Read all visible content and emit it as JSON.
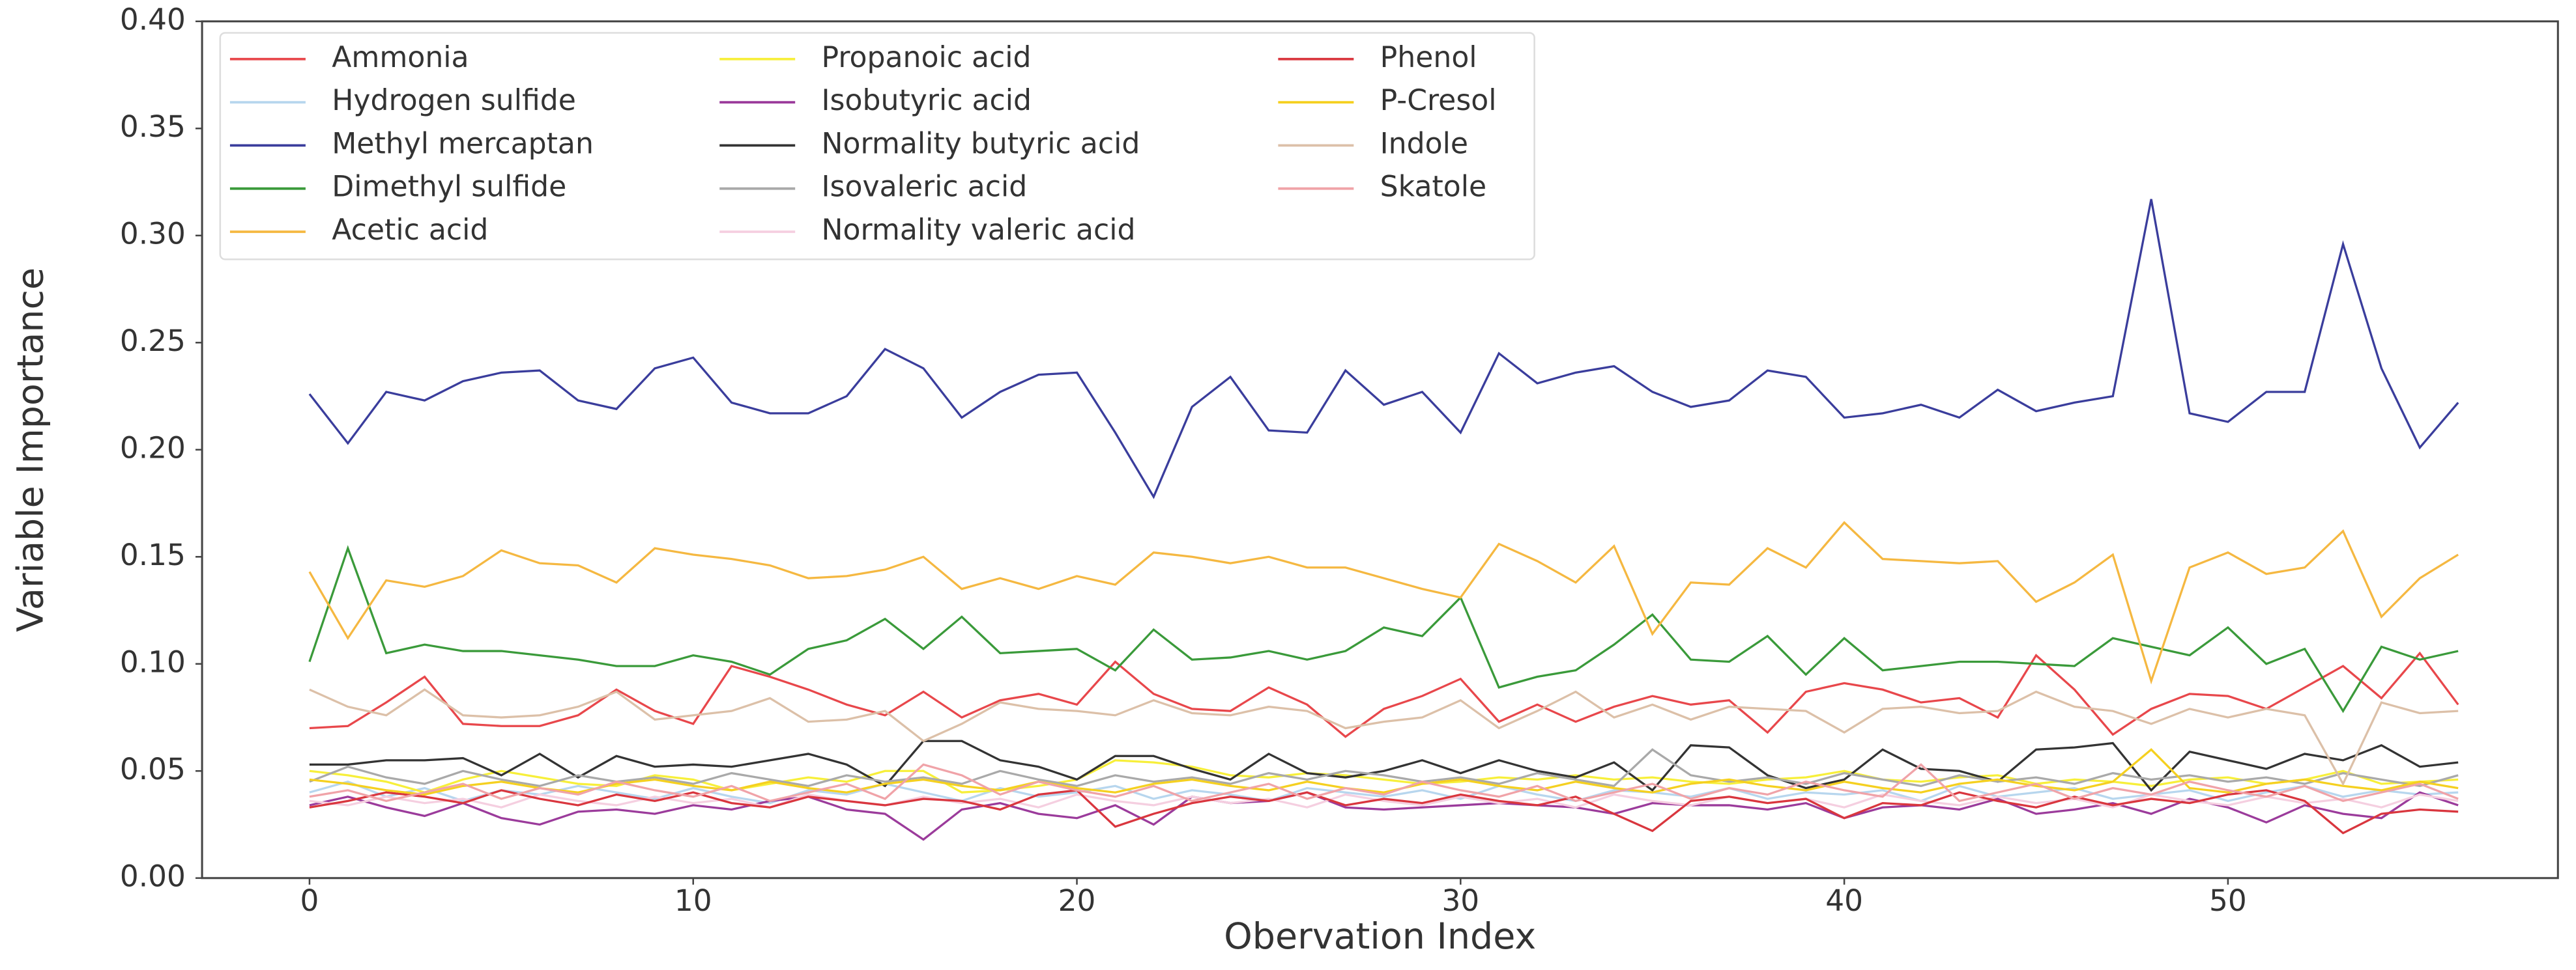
{
  "chart_data": {
    "type": "line",
    "xlabel": "Obervation Index",
    "ylabel": "Variable Importance",
    "x": [
      0,
      1,
      2,
      3,
      4,
      5,
      6,
      7,
      8,
      9,
      10,
      11,
      12,
      13,
      14,
      15,
      16,
      17,
      18,
      19,
      20,
      21,
      22,
      23,
      24,
      25,
      26,
      27,
      28,
      29,
      30,
      31,
      32,
      33,
      34,
      35,
      36,
      37,
      38,
      39,
      40,
      41,
      42,
      43,
      44,
      45,
      46,
      47,
      48,
      49,
      50,
      51,
      52,
      53,
      54,
      55,
      56
    ],
    "xlim": [
      -2.8,
      58.6
    ],
    "xticks": [
      0,
      10,
      20,
      30,
      40,
      50
    ],
    "ylim": [
      0,
      0.4
    ],
    "yticks": [
      {
        "value": 0,
        "label": "0.00"
      },
      {
        "value": 0.05,
        "label": "0.05"
      },
      {
        "value": 0.1,
        "label": "0.10"
      },
      {
        "value": 0.15,
        "label": "0.15"
      },
      {
        "value": 0.2,
        "label": "0.20"
      },
      {
        "value": 0.25,
        "label": "0.25"
      },
      {
        "value": 0.3,
        "label": "0.30"
      },
      {
        "value": 0.35,
        "label": "0.35"
      },
      {
        "value": 0.4,
        "label": "0.40"
      }
    ],
    "grid": false,
    "legend": "upper left",
    "series": [
      {
        "name": "Ammonia",
        "color": "#e8474b",
        "values": [
          0.07,
          0.071,
          0.082,
          0.094,
          0.072,
          0.071,
          0.071,
          0.076,
          0.088,
          0.078,
          0.072,
          0.099,
          0.094,
          0.088,
          0.081,
          0.076,
          0.087,
          0.075,
          0.083,
          0.086,
          0.081,
          0.101,
          0.086,
          0.079,
          0.078,
          0.089,
          0.081,
          0.066,
          0.079,
          0.085,
          0.093,
          0.073,
          0.081,
          0.073,
          0.08,
          0.085,
          0.081,
          0.083,
          0.068,
          0.087,
          0.091,
          0.088,
          0.082,
          0.084,
          0.075,
          0.104,
          0.088,
          0.067,
          0.079,
          0.086,
          0.085,
          0.079,
          0.089,
          0.099,
          0.084,
          0.105,
          0.081
        ]
      },
      {
        "name": "Hydrogen sulfide",
        "color": "#b7d6ee",
        "values": [
          0.04,
          0.045,
          0.038,
          0.042,
          0.036,
          0.041,
          0.039,
          0.043,
          0.04,
          0.037,
          0.042,
          0.038,
          0.035,
          0.041,
          0.039,
          0.044,
          0.04,
          0.036,
          0.042,
          0.038,
          0.04,
          0.043,
          0.037,
          0.041,
          0.039,
          0.036,
          0.042,
          0.04,
          0.038,
          0.041,
          0.037,
          0.043,
          0.039,
          0.036,
          0.041,
          0.04,
          0.038,
          0.042,
          0.037,
          0.04,
          0.039,
          0.041,
          0.036,
          0.043,
          0.038,
          0.04,
          0.042,
          0.037,
          0.039,
          0.041,
          0.036,
          0.04,
          0.043,
          0.038,
          0.041,
          0.039,
          0.04
        ]
      },
      {
        "name": "Methyl mercaptan",
        "color": "#3a3d9c",
        "values": [
          0.226,
          0.203,
          0.227,
          0.223,
          0.232,
          0.236,
          0.237,
          0.223,
          0.219,
          0.238,
          0.243,
          0.222,
          0.217,
          0.217,
          0.225,
          0.247,
          0.238,
          0.215,
          0.227,
          0.235,
          0.236,
          0.208,
          0.178,
          0.22,
          0.234,
          0.209,
          0.208,
          0.237,
          0.221,
          0.227,
          0.208,
          0.245,
          0.231,
          0.236,
          0.239,
          0.227,
          0.22,
          0.223,
          0.237,
          0.234,
          0.215,
          0.217,
          0.221,
          0.215,
          0.228,
          0.218,
          0.222,
          0.225,
          0.317,
          0.217,
          0.213,
          0.227,
          0.227,
          0.296,
          0.238,
          0.201,
          0.222
        ]
      },
      {
        "name": "Dimethyl sulfide",
        "color": "#3a9a3a",
        "values": [
          0.101,
          0.154,
          0.105,
          0.109,
          0.106,
          0.106,
          0.104,
          0.102,
          0.099,
          0.099,
          0.104,
          0.101,
          0.095,
          0.107,
          0.111,
          0.121,
          0.107,
          0.122,
          0.105,
          0.106,
          0.107,
          0.097,
          0.116,
          0.102,
          0.103,
          0.106,
          0.102,
          0.106,
          0.117,
          0.113,
          0.131,
          0.089,
          0.094,
          0.097,
          0.109,
          0.123,
          0.102,
          0.101,
          0.113,
          0.095,
          0.112,
          0.097,
          0.099,
          0.101,
          0.101,
          0.1,
          0.099,
          0.112,
          0.108,
          0.104,
          0.117,
          0.1,
          0.107,
          0.078,
          0.108,
          0.102,
          0.106
        ]
      },
      {
        "name": "Acetic acid",
        "color": "#f5b841",
        "values": [
          0.143,
          0.112,
          0.139,
          0.136,
          0.141,
          0.153,
          0.147,
          0.146,
          0.138,
          0.154,
          0.151,
          0.149,
          0.146,
          0.14,
          0.141,
          0.144,
          0.15,
          0.135,
          0.14,
          0.135,
          0.141,
          0.137,
          0.152,
          0.15,
          0.147,
          0.15,
          0.145,
          0.145,
          0.14,
          0.135,
          0.131,
          0.156,
          0.148,
          0.138,
          0.155,
          0.114,
          0.138,
          0.137,
          0.154,
          0.145,
          0.166,
          0.149,
          0.148,
          0.147,
          0.148,
          0.129,
          0.138,
          0.151,
          0.092,
          0.145,
          0.152,
          0.142,
          0.145,
          0.162,
          0.122,
          0.14,
          0.151
        ]
      },
      {
        "name": "Propanoic acid",
        "color": "#f7ef3a",
        "values": [
          0.05,
          0.048,
          0.045,
          0.04,
          0.046,
          0.05,
          0.047,
          0.044,
          0.043,
          0.048,
          0.046,
          0.041,
          0.044,
          0.047,
          0.045,
          0.05,
          0.05,
          0.04,
          0.041,
          0.043,
          0.046,
          0.055,
          0.054,
          0.052,
          0.048,
          0.047,
          0.049,
          0.048,
          0.046,
          0.044,
          0.045,
          0.047,
          0.046,
          0.048,
          0.046,
          0.047,
          0.045,
          0.044,
          0.046,
          0.047,
          0.05,
          0.046,
          0.045,
          0.047,
          0.048,
          0.044,
          0.046,
          0.045,
          0.043,
          0.046,
          0.047,
          0.044,
          0.046,
          0.05,
          0.044,
          0.045,
          0.046
        ]
      },
      {
        "name": "Isobutyric acid",
        "color": "#9b3b9b",
        "values": [
          0.034,
          0.038,
          0.033,
          0.029,
          0.035,
          0.028,
          0.025,
          0.031,
          0.032,
          0.03,
          0.034,
          0.032,
          0.036,
          0.038,
          0.032,
          0.03,
          0.018,
          0.032,
          0.035,
          0.03,
          0.028,
          0.034,
          0.025,
          0.038,
          0.035,
          0.036,
          0.04,
          0.033,
          0.032,
          0.033,
          0.034,
          0.035,
          0.034,
          0.033,
          0.03,
          0.035,
          0.034,
          0.034,
          0.032,
          0.035,
          0.028,
          0.033,
          0.034,
          0.032,
          0.037,
          0.03,
          0.032,
          0.035,
          0.03,
          0.037,
          0.033,
          0.026,
          0.034,
          0.03,
          0.028,
          0.04,
          0.034
        ]
      },
      {
        "name": "Normality butyric acid",
        "color": "#333333",
        "values": [
          0.053,
          0.053,
          0.055,
          0.055,
          0.056,
          0.048,
          0.058,
          0.047,
          0.057,
          0.052,
          0.053,
          0.052,
          0.055,
          0.058,
          0.053,
          0.043,
          0.064,
          0.064,
          0.055,
          0.052,
          0.046,
          0.057,
          0.057,
          0.051,
          0.046,
          0.058,
          0.049,
          0.047,
          0.05,
          0.055,
          0.049,
          0.055,
          0.05,
          0.047,
          0.054,
          0.041,
          0.062,
          0.061,
          0.048,
          0.042,
          0.046,
          0.06,
          0.051,
          0.05,
          0.045,
          0.06,
          0.061,
          0.063,
          0.041,
          0.059,
          0.055,
          0.051,
          0.058,
          0.055,
          0.062,
          0.052,
          0.054
        ]
      },
      {
        "name": "Isovaleric acid",
        "color": "#a9a9a9",
        "values": [
          0.045,
          0.052,
          0.047,
          0.044,
          0.05,
          0.046,
          0.043,
          0.048,
          0.045,
          0.047,
          0.044,
          0.049,
          0.046,
          0.043,
          0.048,
          0.045,
          0.047,
          0.044,
          0.05,
          0.046,
          0.043,
          0.048,
          0.045,
          0.047,
          0.044,
          0.049,
          0.046,
          0.05,
          0.048,
          0.045,
          0.047,
          0.044,
          0.049,
          0.046,
          0.043,
          0.06,
          0.048,
          0.045,
          0.047,
          0.044,
          0.049,
          0.046,
          0.043,
          0.048,
          0.045,
          0.047,
          0.044,
          0.049,
          0.046,
          0.048,
          0.045,
          0.047,
          0.044,
          0.049,
          0.046,
          0.043,
          0.048
        ]
      },
      {
        "name": "Normality valeric acid",
        "color": "#f5cfe0",
        "values": [
          0.036,
          0.034,
          0.038,
          0.035,
          0.037,
          0.033,
          0.039,
          0.036,
          0.034,
          0.038,
          0.035,
          0.037,
          0.033,
          0.039,
          0.036,
          0.034,
          0.038,
          0.035,
          0.037,
          0.033,
          0.039,
          0.036,
          0.034,
          0.038,
          0.035,
          0.037,
          0.033,
          0.039,
          0.036,
          0.034,
          0.038,
          0.035,
          0.037,
          0.033,
          0.039,
          0.036,
          0.034,
          0.038,
          0.035,
          0.037,
          0.033,
          0.039,
          0.036,
          0.034,
          0.038,
          0.035,
          0.037,
          0.033,
          0.039,
          0.036,
          0.034,
          0.038,
          0.035,
          0.037,
          0.033,
          0.039,
          0.036
        ]
      },
      {
        "name": "Phenol",
        "color": "#d9363e",
        "values": [
          0.033,
          0.036,
          0.04,
          0.038,
          0.035,
          0.041,
          0.037,
          0.034,
          0.039,
          0.036,
          0.04,
          0.035,
          0.033,
          0.038,
          0.036,
          0.034,
          0.037,
          0.036,
          0.032,
          0.039,
          0.041,
          0.024,
          0.03,
          0.035,
          0.038,
          0.036,
          0.04,
          0.034,
          0.037,
          0.035,
          0.039,
          0.036,
          0.034,
          0.038,
          0.03,
          0.022,
          0.036,
          0.038,
          0.035,
          0.037,
          0.028,
          0.035,
          0.034,
          0.04,
          0.036,
          0.033,
          0.038,
          0.034,
          0.037,
          0.035,
          0.039,
          0.041,
          0.036,
          0.021,
          0.03,
          0.032,
          0.031
        ]
      },
      {
        "name": "P-Cresol",
        "color": "#f5d020",
        "values": [
          0.046,
          0.044,
          0.041,
          0.039,
          0.043,
          0.045,
          0.042,
          0.04,
          0.044,
          0.046,
          0.043,
          0.041,
          0.045,
          0.042,
          0.04,
          0.044,
          0.046,
          0.043,
          0.041,
          0.045,
          0.042,
          0.04,
          0.044,
          0.046,
          0.043,
          0.041,
          0.045,
          0.042,
          0.04,
          0.044,
          0.046,
          0.043,
          0.041,
          0.045,
          0.042,
          0.04,
          0.044,
          0.046,
          0.043,
          0.041,
          0.045,
          0.042,
          0.04,
          0.044,
          0.046,
          0.043,
          0.041,
          0.045,
          0.06,
          0.042,
          0.04,
          0.044,
          0.046,
          0.043,
          0.041,
          0.045,
          0.042
        ]
      },
      {
        "name": "Indole",
        "color": "#dcc0a8",
        "values": [
          0.088,
          0.08,
          0.076,
          0.088,
          0.076,
          0.075,
          0.076,
          0.08,
          0.087,
          0.074,
          0.076,
          0.078,
          0.084,
          0.073,
          0.074,
          0.078,
          0.064,
          0.072,
          0.082,
          0.079,
          0.078,
          0.076,
          0.083,
          0.077,
          0.076,
          0.08,
          0.078,
          0.07,
          0.073,
          0.075,
          0.083,
          0.07,
          0.078,
          0.087,
          0.075,
          0.081,
          0.074,
          0.08,
          0.079,
          0.078,
          0.068,
          0.079,
          0.08,
          0.077,
          0.078,
          0.087,
          0.08,
          0.078,
          0.072,
          0.079,
          0.075,
          0.079,
          0.076,
          0.044,
          0.082,
          0.077,
          0.078
        ]
      },
      {
        "name": "Skatole",
        "color": "#f0a3a8",
        "values": [
          0.038,
          0.041,
          0.036,
          0.04,
          0.044,
          0.037,
          0.042,
          0.039,
          0.045,
          0.041,
          0.038,
          0.043,
          0.036,
          0.04,
          0.044,
          0.037,
          0.053,
          0.048,
          0.039,
          0.045,
          0.041,
          0.038,
          0.043,
          0.036,
          0.04,
          0.044,
          0.037,
          0.042,
          0.039,
          0.045,
          0.041,
          0.038,
          0.043,
          0.036,
          0.04,
          0.044,
          0.037,
          0.042,
          0.039,
          0.045,
          0.041,
          0.038,
          0.053,
          0.036,
          0.04,
          0.044,
          0.037,
          0.042,
          0.039,
          0.045,
          0.041,
          0.038,
          0.043,
          0.036,
          0.04,
          0.044,
          0.037
        ]
      }
    ]
  }
}
